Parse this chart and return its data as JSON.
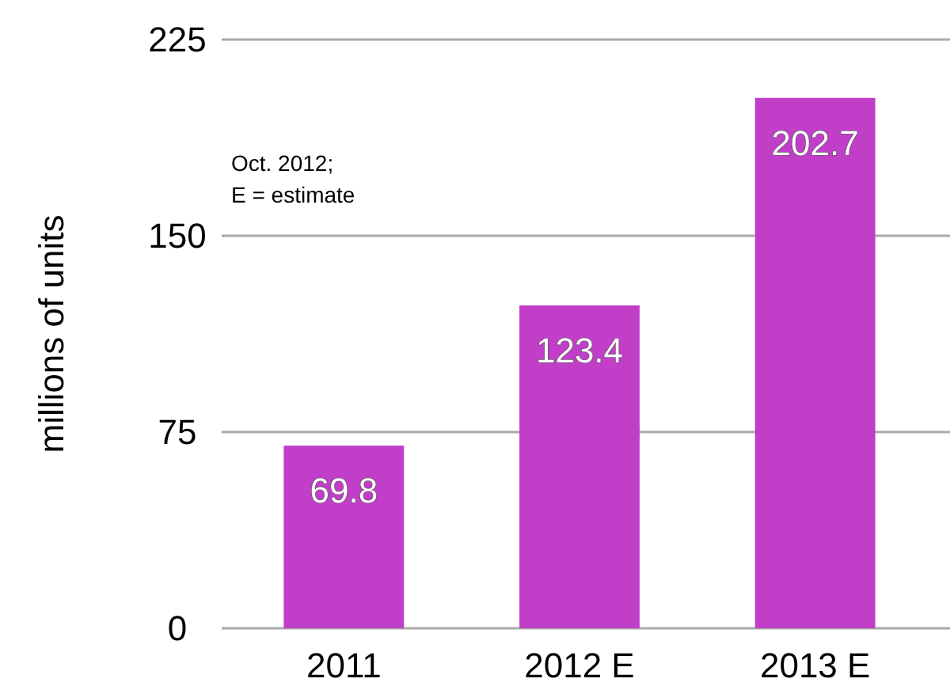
{
  "chart_data": {
    "type": "bar",
    "ylabel": "millions of units",
    "categories": [
      "2011",
      "2012 E",
      "2013 E"
    ],
    "values": [
      69.8,
      123.4,
      202.7
    ],
    "color": "#c03ec8",
    "ylim": [
      0,
      225
    ],
    "yticks": [
      0,
      75,
      150,
      225
    ],
    "grid": "y",
    "data_labels": true,
    "annotations": [
      "Oct. 2012;",
      "E = estimate"
    ]
  }
}
